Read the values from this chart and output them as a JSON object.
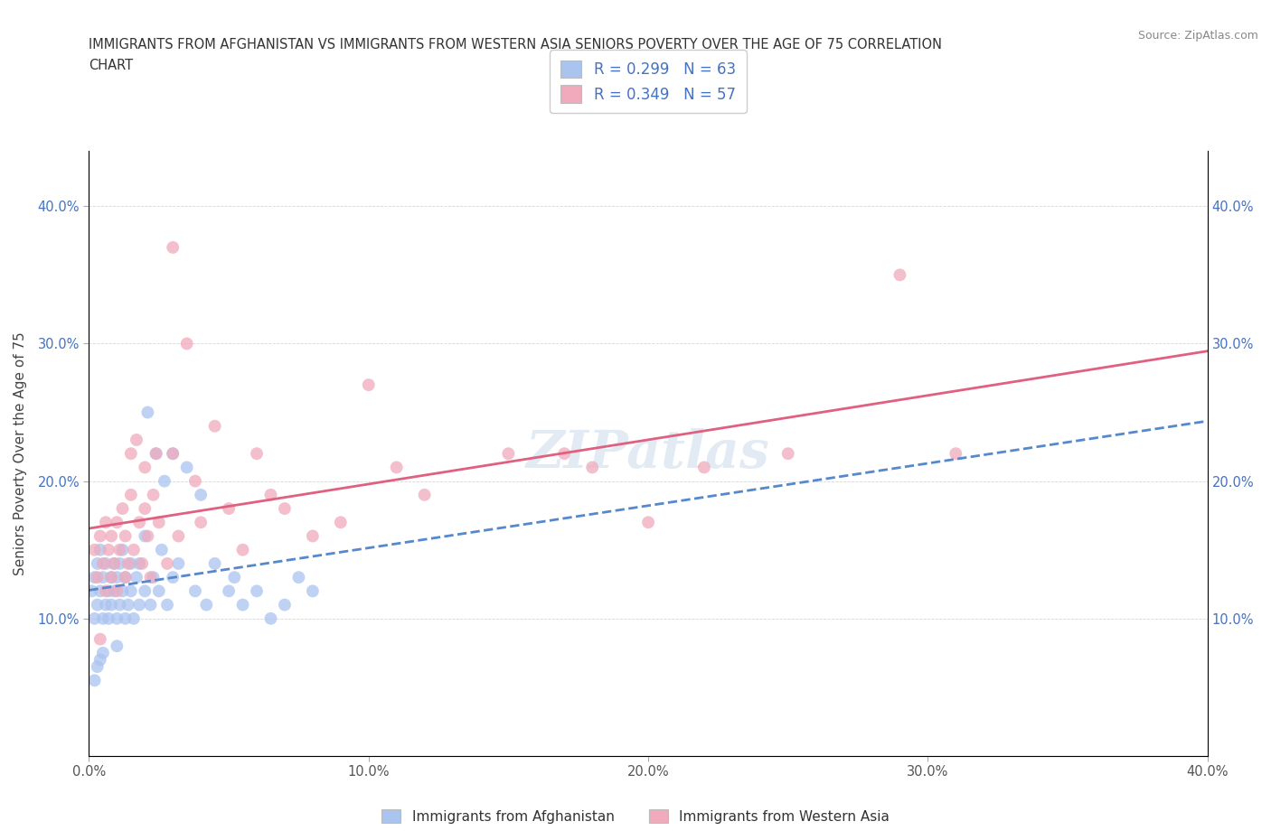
{
  "title_line1": "IMMIGRANTS FROM AFGHANISTAN VS IMMIGRANTS FROM WESTERN ASIA SENIORS POVERTY OVER THE AGE OF 75 CORRELATION",
  "title_line2": "CHART",
  "source": "Source: ZipAtlas.com",
  "ylabel": "Seniors Poverty Over the Age of 75",
  "xlim": [
    0.0,
    0.4
  ],
  "ylim": [
    0.0,
    0.44
  ],
  "xticks": [
    0.0,
    0.1,
    0.2,
    0.3,
    0.4
  ],
  "yticks": [
    0.1,
    0.2,
    0.3,
    0.4
  ],
  "xtick_labels": [
    "0.0%",
    "10.0%",
    "20.0%",
    "30.0%",
    "40.0%"
  ],
  "ytick_labels": [
    "10.0%",
    "20.0%",
    "30.0%",
    "40.0%"
  ],
  "afghanistan_color": "#aac4f0",
  "western_asia_color": "#f0aabb",
  "afghanistan_R": 0.299,
  "afghanistan_N": 63,
  "western_asia_R": 0.349,
  "western_asia_N": 57,
  "watermark": "ZIPatlas",
  "afghanistan_line_color": "#5588cc",
  "western_asia_line_color": "#e06080",
  "afghanistan_line_style": "--",
  "western_asia_line_style": "-",
  "afghanistan_scatter": [
    [
      0.001,
      0.12
    ],
    [
      0.002,
      0.1
    ],
    [
      0.002,
      0.13
    ],
    [
      0.003,
      0.11
    ],
    [
      0.003,
      0.14
    ],
    [
      0.004,
      0.12
    ],
    [
      0.004,
      0.15
    ],
    [
      0.005,
      0.1
    ],
    [
      0.005,
      0.13
    ],
    [
      0.006,
      0.11
    ],
    [
      0.006,
      0.14
    ],
    [
      0.007,
      0.12
    ],
    [
      0.007,
      0.1
    ],
    [
      0.008,
      0.13
    ],
    [
      0.008,
      0.11
    ],
    [
      0.009,
      0.12
    ],
    [
      0.009,
      0.14
    ],
    [
      0.01,
      0.1
    ],
    [
      0.01,
      0.13
    ],
    [
      0.011,
      0.11
    ],
    [
      0.011,
      0.14
    ],
    [
      0.012,
      0.12
    ],
    [
      0.012,
      0.15
    ],
    [
      0.013,
      0.1
    ],
    [
      0.013,
      0.13
    ],
    [
      0.014,
      0.11
    ],
    [
      0.015,
      0.14
    ],
    [
      0.015,
      0.12
    ],
    [
      0.016,
      0.1
    ],
    [
      0.017,
      0.13
    ],
    [
      0.018,
      0.11
    ],
    [
      0.018,
      0.14
    ],
    [
      0.02,
      0.12
    ],
    [
      0.02,
      0.16
    ],
    [
      0.021,
      0.25
    ],
    [
      0.022,
      0.11
    ],
    [
      0.023,
      0.13
    ],
    [
      0.024,
      0.22
    ],
    [
      0.025,
      0.12
    ],
    [
      0.026,
      0.15
    ],
    [
      0.027,
      0.2
    ],
    [
      0.028,
      0.11
    ],
    [
      0.03,
      0.13
    ],
    [
      0.03,
      0.22
    ],
    [
      0.032,
      0.14
    ],
    [
      0.035,
      0.21
    ],
    [
      0.038,
      0.12
    ],
    [
      0.04,
      0.19
    ],
    [
      0.042,
      0.11
    ],
    [
      0.045,
      0.14
    ],
    [
      0.05,
      0.12
    ],
    [
      0.052,
      0.13
    ],
    [
      0.055,
      0.11
    ],
    [
      0.06,
      0.12
    ],
    [
      0.065,
      0.1
    ],
    [
      0.07,
      0.11
    ],
    [
      0.075,
      0.13
    ],
    [
      0.08,
      0.12
    ],
    [
      0.002,
      0.055
    ],
    [
      0.003,
      0.065
    ],
    [
      0.004,
      0.07
    ],
    [
      0.005,
      0.075
    ],
    [
      0.01,
      0.08
    ]
  ],
  "western_asia_scatter": [
    [
      0.002,
      0.15
    ],
    [
      0.003,
      0.13
    ],
    [
      0.004,
      0.16
    ],
    [
      0.005,
      0.14
    ],
    [
      0.006,
      0.12
    ],
    [
      0.006,
      0.17
    ],
    [
      0.007,
      0.15
    ],
    [
      0.008,
      0.13
    ],
    [
      0.008,
      0.16
    ],
    [
      0.009,
      0.14
    ],
    [
      0.01,
      0.17
    ],
    [
      0.01,
      0.12
    ],
    [
      0.011,
      0.15
    ],
    [
      0.012,
      0.18
    ],
    [
      0.013,
      0.13
    ],
    [
      0.013,
      0.16
    ],
    [
      0.014,
      0.14
    ],
    [
      0.015,
      0.19
    ],
    [
      0.015,
      0.22
    ],
    [
      0.016,
      0.15
    ],
    [
      0.017,
      0.23
    ],
    [
      0.018,
      0.17
    ],
    [
      0.019,
      0.14
    ],
    [
      0.02,
      0.18
    ],
    [
      0.02,
      0.21
    ],
    [
      0.021,
      0.16
    ],
    [
      0.022,
      0.13
    ],
    [
      0.023,
      0.19
    ],
    [
      0.024,
      0.22
    ],
    [
      0.025,
      0.17
    ],
    [
      0.028,
      0.14
    ],
    [
      0.03,
      0.22
    ],
    [
      0.03,
      0.37
    ],
    [
      0.032,
      0.16
    ],
    [
      0.035,
      0.3
    ],
    [
      0.038,
      0.2
    ],
    [
      0.04,
      0.17
    ],
    [
      0.045,
      0.24
    ],
    [
      0.05,
      0.18
    ],
    [
      0.055,
      0.15
    ],
    [
      0.06,
      0.22
    ],
    [
      0.065,
      0.19
    ],
    [
      0.07,
      0.18
    ],
    [
      0.08,
      0.16
    ],
    [
      0.09,
      0.17
    ],
    [
      0.1,
      0.27
    ],
    [
      0.11,
      0.21
    ],
    [
      0.12,
      0.19
    ],
    [
      0.15,
      0.22
    ],
    [
      0.17,
      0.22
    ],
    [
      0.18,
      0.21
    ],
    [
      0.2,
      0.17
    ],
    [
      0.22,
      0.21
    ],
    [
      0.25,
      0.22
    ],
    [
      0.29,
      0.35
    ],
    [
      0.31,
      0.22
    ],
    [
      0.004,
      0.085
    ]
  ]
}
